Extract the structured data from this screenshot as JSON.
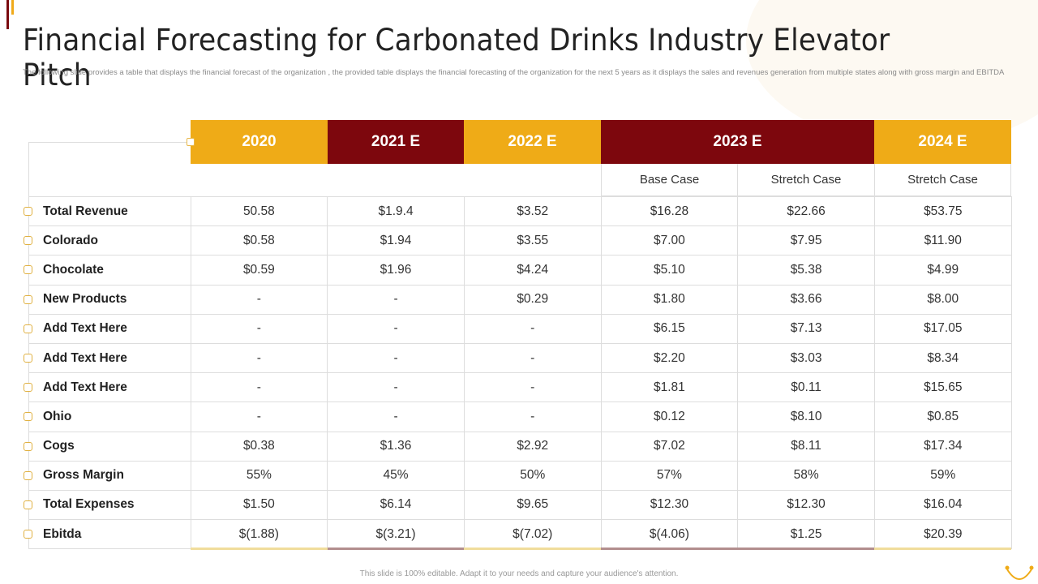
{
  "title": "Financial Forecasting for Carbonated Drinks Industry Elevator Pitch",
  "subtitle": "The following slide provides a table that displays the financial forecast of the organization , the provided table displays the financial forecasting of the organization for the next 5 years as it displays the sales and revenues generation from multiple  states along with gross margin and EBITDA",
  "colors": {
    "yellow": "#efab17",
    "maroon": "#7d070d"
  },
  "years": [
    {
      "label": "2020",
      "color": "yellow"
    },
    {
      "label": "2021 E",
      "color": "maroon"
    },
    {
      "label": "2022 E",
      "color": "yellow"
    },
    {
      "label": "2023 E",
      "color": "maroon"
    },
    {
      "label": "2024 E",
      "color": "yellow"
    }
  ],
  "subheaders": [
    "Base Case",
    "Stretch Case",
    "Stretch Case"
  ],
  "rows": [
    {
      "label": "Total Revenue",
      "values": [
        "50.58",
        "$1.9.4",
        "$3.52",
        "$16.28",
        "$22.66",
        "$53.75"
      ]
    },
    {
      "label": "Colorado",
      "values": [
        "$0.58",
        "$1.94",
        "$3.55",
        "$7.00",
        "$7.95",
        "$11.90"
      ]
    },
    {
      "label": "Chocolate",
      "values": [
        "$0.59",
        "$1.96",
        "$4.24",
        "$5.10",
        "$5.38",
        "$4.99"
      ]
    },
    {
      "label": "New Products",
      "values": [
        "-",
        "-",
        "$0.29",
        "$1.80",
        "$3.66",
        "$8.00"
      ]
    },
    {
      "label": "Add Text Here",
      "values": [
        "-",
        "-",
        "-",
        "$6.15",
        "$7.13",
        "$17.05"
      ]
    },
    {
      "label": "Add Text Here",
      "values": [
        "-",
        "-",
        "-",
        "$2.20",
        "$3.03",
        "$8.34"
      ]
    },
    {
      "label": "Add Text Here",
      "values": [
        "-",
        "-",
        "-",
        "$1.81",
        "$0.11",
        "$15.65"
      ]
    },
    {
      "label": "Ohio",
      "values": [
        "-",
        "-",
        "-",
        "$0.12",
        "$8.10",
        "$0.85"
      ]
    },
    {
      "label": "Cogs",
      "values": [
        "$0.38",
        "$1.36",
        "$2.92",
        "$7.02",
        "$8.11",
        "$17.34"
      ]
    },
    {
      "label": "Gross Margin",
      "values": [
        "55%",
        "45%",
        "50%",
        "57%",
        "58%",
        "59%"
      ]
    },
    {
      "label": "Total Expenses",
      "values": [
        "$1.50",
        "$6.14",
        "$9.65",
        "$12.30",
        "$12.30",
        "$16.04"
      ]
    },
    {
      "label": "Ebitda",
      "values": [
        "$(1.88)",
        "$(3.21)",
        "$(7.02)",
        "$(4.06)",
        "$1.25",
        "$20.39"
      ]
    }
  ],
  "footer": "This slide is 100% editable. Adapt it to your needs and capture your audience's attention."
}
